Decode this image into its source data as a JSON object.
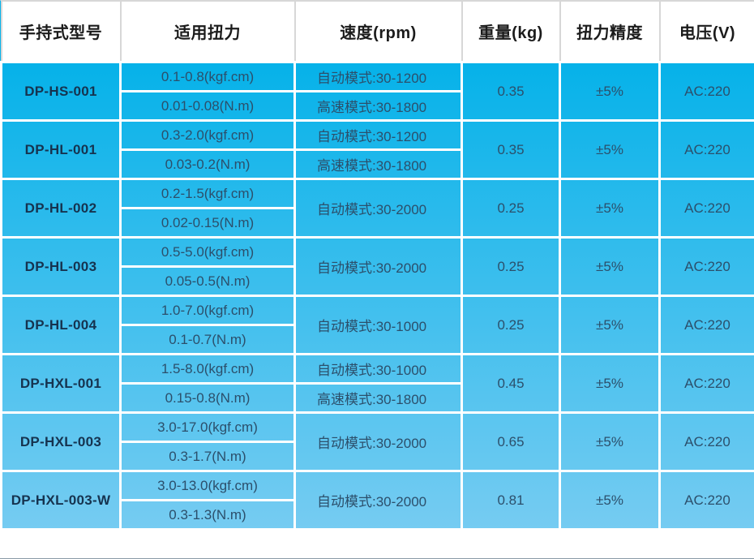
{
  "table": {
    "columns": [
      "手持式型号",
      "适用扭力",
      "速度(rpm)",
      "重量(kg)",
      "扭力精度",
      "电压(V)"
    ],
    "rows": [
      {
        "model": "DP-HS-001",
        "torque": [
          "0.1-0.8(kgf.cm)",
          "0.01-0.08(N.m)"
        ],
        "speed": [
          "自动模式:30-1200",
          "高速模式:30-1800"
        ],
        "weight": "0.35",
        "accuracy": "±5%",
        "voltage": "AC:220"
      },
      {
        "model": "DP-HL-001",
        "torque": [
          "0.3-2.0(kgf.cm)",
          "0.03-0.2(N.m)"
        ],
        "speed": [
          "自动模式:30-1200",
          "高速模式:30-1800"
        ],
        "weight": "0.35",
        "accuracy": "±5%",
        "voltage": "AC:220"
      },
      {
        "model": "DP-HL-002",
        "torque": [
          "0.2-1.5(kgf.cm)",
          "0.02-0.15(N.m)"
        ],
        "speed": [
          "自动模式:30-2000"
        ],
        "weight": "0.25",
        "accuracy": "±5%",
        "voltage": "AC:220"
      },
      {
        "model": "DP-HL-003",
        "torque": [
          "0.5-5.0(kgf.cm)",
          "0.05-0.5(N.m)"
        ],
        "speed": [
          "自动模式:30-2000"
        ],
        "weight": "0.25",
        "accuracy": "±5%",
        "voltage": "AC:220"
      },
      {
        "model": "DP-HL-004",
        "torque": [
          "1.0-7.0(kgf.cm)",
          "0.1-0.7(N.m)"
        ],
        "speed": [
          "自动模式:30-1000"
        ],
        "weight": "0.25",
        "accuracy": "±5%",
        "voltage": "AC:220"
      },
      {
        "model": "DP-HXL-001",
        "torque": [
          "1.5-8.0(kgf.cm)",
          "0.15-0.8(N.m)"
        ],
        "speed": [
          "自动模式:30-1000",
          "高速模式:30-1800"
        ],
        "weight": "0.45",
        "accuracy": "±5%",
        "voltage": "AC:220"
      },
      {
        "model": "DP-HXL-003",
        "torque": [
          "3.0-17.0(kgf.cm)",
          "0.3-1.7(N.m)"
        ],
        "speed": [
          "自动模式:30-2000"
        ],
        "weight": "0.65",
        "accuracy": "±5%",
        "voltage": "AC:220"
      },
      {
        "model": "DP-HXL-003-W",
        "torque": [
          "3.0-13.0(kgf.cm)",
          "0.3-1.3(N.m)"
        ],
        "speed": [
          "自动模式:30-2000"
        ],
        "weight": "0.81",
        "accuracy": "±5%",
        "voltage": "AC:220"
      }
    ]
  },
  "colors": {
    "header_bg": "#ffffff",
    "header_text": "#1b1b1b",
    "header_border": "#d7d7d7",
    "body_gradient_top": "#06b2e9",
    "body_gradient_bottom": "#7ccdf2",
    "grid_line": "#ffffff",
    "model_text": "#16334f",
    "cell_text": "#2c4f6b"
  }
}
